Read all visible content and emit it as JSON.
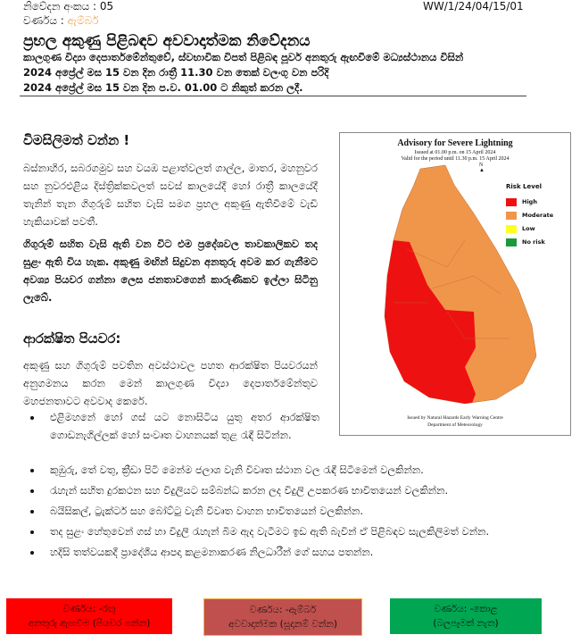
{
  "header": {
    "notice_no": "නිවේදන අංකය : 05",
    "ref": "WW/1/24/04/15/01",
    "level_label": "වර්ණය : ",
    "level_value": "ඇම්බර්",
    "level_color": "#f0a050",
    "title": "ප්‍රභල අකුණු පිළිබඳව අවවාදාත්මක නිවේදනය",
    "lines": [
      "කාලගුණ විද්‍යා දෙපාර්තමේන්තුවේ, ස්වභාවික විපත් පිළිබඳ  පූර්ව අනතුරු ඇඟවීමේ මධ්‍යස්ථානය විසින්",
      "2024 අප්‍රේල් මස 15 වන දින රාත්‍රී 11.30 වන තෙක් වලංගු වන පරිදි",
      "2024 අප්‍රේල් මස 15 වන දින ප.ව. 01.00 ට නිකුත් කරන ලදී."
    ]
  },
  "alert": {
    "heading": "විමසිලිමත් වන්න !",
    "para1": "බස්නාහිර, සබරගමුව සහ වයඹ පළාත්වලත් ගාල්ල, මාතර, මහනුවර සහ නුවරඑළිය දිස්ත්‍රික්කවලත්  සවස් කාලයේදී හෝ රාත්‍රී කාලයේදී තැනින් තැන ගිගුරුම් සහිත වැසි සමග ප්‍රභල අකුණු ඇතිවීමේ වැඩි හැකියාවක් පවතී.",
    "para2": "ගිගුරුම් සහිත වැසි ඇති වන විට එම ප්‍රදේශවල තාවකාලිකව තද සුළං ඇති විය හැක. අකුණු මඟින් සිදුවන අනතුරු අවම කර ගැනීමට අවශ්‍ය පියවර ගන්නා ලෙස ජනතාවගෙන් කාරුණිකව ඉල්ලා සිටිනු ලැබේ."
  },
  "precautions": {
    "heading": "ආරක්ෂිත පියවර:",
    "intro": "අකුණු සහ ගිගුරුම් පවතින අවස්ථාවල පහත ආරක්ෂිත පියවරයන් අනුගමනය කරන මෙන් කාලගුණ විද්‍යා දෙපාර්තමේන්තුව මහජනතාවට අවවාද කෙරේ.",
    "items": [
      "එළිමහනේ හෝ ගස් යට නොසිටිය යුතු අතර ආරක්ෂිත ගොඩනැගිල්ලක් හෝ සංවෘත වාහනයක් තුළ රැඳී සිටින්න.",
      "කුඹුරු, තේ වතු, ක්‍රීඩා පිටි මෙන්ම ජලාශ වැනි විවෘත ස්ථාන වල රැඳී සිටීමෙන් වලකින්න.",
      "රැහැන් සහිත දුරකථන සහ විදුලියට සම්බන්ධ කරන ලද විදුලි උපකරණ භාවිතයෙන් වලකින්න.",
      "බයිසිකල්, ට්‍රැක්ටර් සහ බෝට්ටු වැනි විවෘත වාහන භාවිතයෙන් වලකින්න.",
      "තද සුළං හේතුවෙන් ගස් හා විදුලි රැහැන් බිම ඇද වැටීමට ඉඩ ඇති බැවින් ඒ පිළිබඳව සැලකිලිමත් වන්න.",
      "හදිසි තත්වයකදී ප්‍රාදේශීය ආපදා කළමනාකරණ නිලධාරීන් ගේ සහය පතන්න."
    ]
  },
  "map": {
    "title": "Advisory for Severe Lightning",
    "issued": "Issued at 01.00 p.m. on 15 April 2024",
    "valid": "Valid for the period until 11.30 p.m. 15 April 2024",
    "north": "N",
    "legend_title": "Risk Level",
    "legend": [
      {
        "label": "High",
        "color": "#ee1111"
      },
      {
        "label": "Moderate",
        "color": "#f0964a"
      },
      {
        "label": "Low",
        "color": "#ffff22"
      },
      {
        "label": "No risk",
        "color": "#1a9a3a"
      }
    ],
    "footer1": "Issued by Natural Hazards Early Warning Centre",
    "footer2": "Department of Meteorology"
  },
  "levels": [
    {
      "line1": "වර්ණය: -රතු",
      "line2": "අනතුරු ඇඟවීම (පියවර ගන්න)",
      "color": "#ff0000"
    },
    {
      "line1": "වර්ණය: -ඇම්බර්",
      "line2": "අවවාදාත්මක (සූදානම් වන්න)",
      "color": "#c0504d",
      "border": "#f5b041"
    },
    {
      "line1": "වර්ණය: -කොළ",
      "line2": "(බලපෑමක් නැත)",
      "color": "#00a651"
    }
  ]
}
